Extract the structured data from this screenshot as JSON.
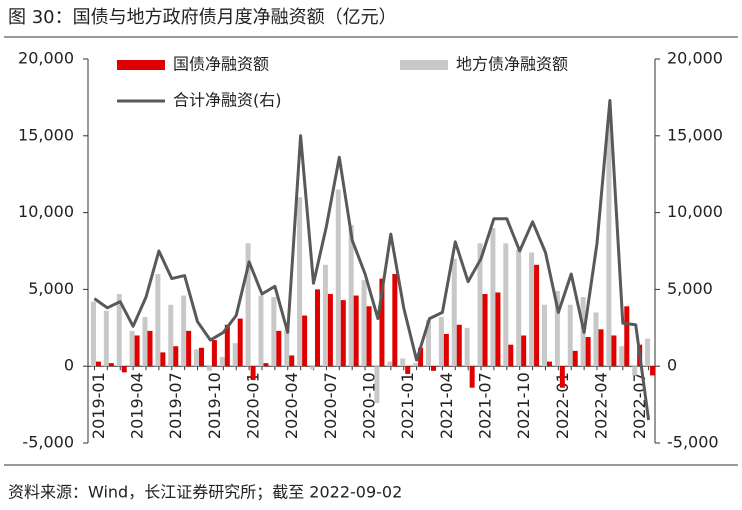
{
  "chart_data": {
    "type": "bar",
    "title": "图 30：国债与地方政府债月度净融资额（亿元）",
    "source": "资料来源：Wind，长江证券研究所；截至 2022-09-02",
    "categories": [
      "2019-01",
      null,
      null,
      "2019-04",
      null,
      null,
      "2019-07",
      null,
      null,
      "2019-10",
      null,
      null,
      "2020-01",
      null,
      null,
      "2020-04",
      null,
      null,
      "2020-07",
      null,
      null,
      "2020-10",
      null,
      null,
      "2021-01",
      null,
      null,
      "2021-04",
      null,
      null,
      "2021-07",
      null,
      null,
      "2021-10",
      null,
      null,
      "2022-01",
      null,
      null,
      "2022-04",
      null,
      null,
      "2022-07",
      null
    ],
    "series": [
      {
        "name": "国债净融资额",
        "color": "#e00000",
        "values": [
          300,
          200,
          -400,
          2000,
          2300,
          900,
          1300,
          2300,
          1200,
          1700,
          2700,
          3100,
          -900,
          200,
          2300,
          700,
          3300,
          5000,
          4700,
          4300,
          4600,
          3900,
          5700,
          6000,
          -500,
          1200,
          -300,
          2100,
          2700,
          -1400,
          4700,
          4800,
          1400,
          2000,
          6600,
          300,
          -1400,
          1000,
          1900,
          2400,
          2000,
          3900,
          1400,
          -600
        ]
      },
      {
        "name": "地方债净融资额",
        "color": "#c8c8c8",
        "values": [
          4200,
          3600,
          4700,
          2300,
          3200,
          6000,
          4000,
          4600,
          1100,
          -300,
          600,
          1500,
          8000,
          4600,
          4500,
          2400,
          11000,
          -200,
          6600,
          11500,
          9200,
          5600,
          -2400,
          300,
          500,
          200,
          3000,
          3200,
          7000,
          2500,
          8000,
          9000,
          8000,
          7600,
          7400,
          4000,
          4900,
          4000,
          4500,
          3500,
          16000,
          1300,
          -600,
          1800
        ]
      },
      {
        "name": "合计净融资(右)",
        "color": "#595959",
        "type": "line",
        "axis": "y2",
        "values": [
          4400,
          3800,
          4200,
          2600,
          4500,
          7500,
          5700,
          5900,
          2900,
          1700,
          2200,
          3300,
          6800,
          4700,
          5200,
          2200,
          15000,
          5400,
          9100,
          13600,
          8200,
          6000,
          3100,
          8600,
          3800,
          400,
          3100,
          3500,
          8100,
          5500,
          7000,
          9600,
          9600,
          7500,
          9400,
          7400,
          3500,
          6000,
          2200,
          8000,
          17300,
          2800,
          2700,
          -3500
        ]
      }
    ],
    "ylim": [
      -5000,
      20000
    ],
    "yticks": [
      {
        "value": -5000,
        "label": "-5,000"
      },
      0,
      {
        "value": 5000,
        "label": "5,000"
      },
      {
        "value": 10000,
        "label": "10,000"
      },
      {
        "value": 15000,
        "label": "15,000"
      },
      {
        "value": 20000,
        "label": "20,000"
      }
    ],
    "y2lim": [
      -5000,
      20000
    ],
    "y2ticks": [
      {
        "value": -5000,
        "label": "-5,000"
      },
      0,
      {
        "value": 5000,
        "label": "5,000"
      },
      {
        "value": 10000,
        "label": "10,000"
      },
      {
        "value": 15000,
        "label": "15,000"
      },
      {
        "value": 20000,
        "label": "20,000"
      }
    ]
  }
}
